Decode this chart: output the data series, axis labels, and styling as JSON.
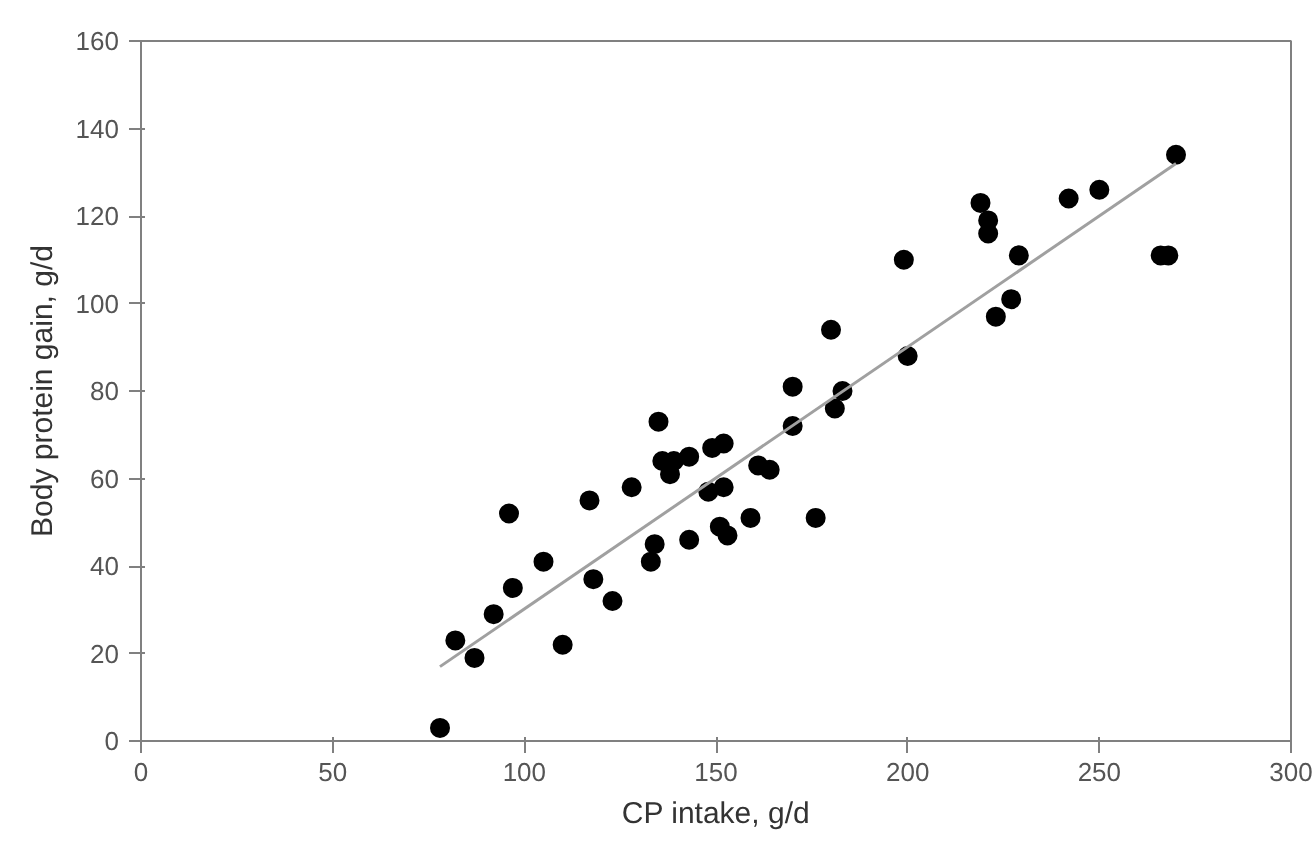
{
  "chart_data": {
    "type": "scatter",
    "xlabel": "CP intake, g/d",
    "ylabel": "Body protein gain, g/d",
    "xlim": [
      0,
      300
    ],
    "ylim": [
      0,
      160
    ],
    "xticks": [
      0,
      50,
      100,
      150,
      200,
      250,
      300
    ],
    "yticks": [
      0,
      20,
      40,
      60,
      80,
      100,
      120,
      140,
      160
    ],
    "grid": false,
    "series": [
      {
        "color": "#000000",
        "marker": "circle",
        "x": [
          78,
          82,
          87,
          92,
          97,
          96,
          105,
          110,
          117,
          118,
          123,
          128,
          133,
          134,
          135,
          136,
          138,
          139,
          143,
          143,
          148,
          149,
          152,
          152,
          151,
          153,
          159,
          161,
          164,
          176,
          170,
          170,
          180,
          183,
          181,
          199,
          200,
          219,
          221,
          221,
          223,
          227,
          229,
          242,
          250,
          266,
          268,
          270
        ],
        "values": [
          3,
          23,
          19,
          29,
          35,
          52,
          41,
          22,
          55,
          37,
          32,
          58,
          41,
          45,
          73,
          64,
          61,
          64,
          65,
          46,
          57,
          67,
          68,
          58,
          49,
          47,
          51,
          63,
          62,
          51,
          72,
          81,
          94,
          80,
          76,
          110,
          88,
          123,
          119,
          116,
          97,
          101,
          111,
          124,
          126,
          111,
          111,
          134
        ]
      },
      {
        "type": "line",
        "color": "#a0a0a0",
        "x": [
          78,
          270
        ],
        "values": [
          17,
          132
        ]
      }
    ]
  }
}
